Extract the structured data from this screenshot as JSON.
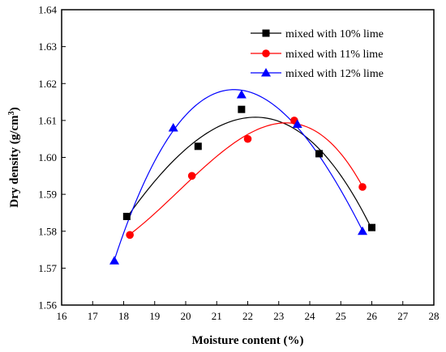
{
  "chart_data": {
    "type": "line",
    "xlabel": "Moisture content (%)",
    "ylabel_main": "Dry density (g/cm",
    "ylabel_sup": "3",
    "ylabel_close": ")",
    "xlim": [
      16,
      28
    ],
    "ylim": [
      1.56,
      1.64
    ],
    "xticks": [
      "16",
      "17",
      "18",
      "19",
      "20",
      "21",
      "22",
      "23",
      "24",
      "25",
      "26",
      "27",
      "28"
    ],
    "yticks": [
      "1.56",
      "1.57",
      "1.58",
      "1.59",
      "1.60",
      "1.61",
      "1.62",
      "1.63",
      "1.64"
    ],
    "grid": false,
    "legend_position": "top-right",
    "series": [
      {
        "name": "mixed with 10% lime",
        "color": "#000000",
        "marker": "square",
        "x": [
          18.1,
          20.4,
          21.8,
          24.3,
          26.0
        ],
        "y": [
          1.584,
          1.603,
          1.613,
          1.601,
          1.581
        ]
      },
      {
        "name": "mixed with 11% lime",
        "color": "#ff0000",
        "marker": "circle",
        "x": [
          18.2,
          20.2,
          22.0,
          23.5,
          25.7
        ],
        "y": [
          1.579,
          1.595,
          1.605,
          1.61,
          1.592
        ]
      },
      {
        "name": "mixed with 12% lime",
        "color": "#0000ff",
        "marker": "triangle",
        "x": [
          17.7,
          19.6,
          21.8,
          23.6,
          25.7
        ],
        "y": [
          1.572,
          1.608,
          1.617,
          1.609,
          1.58
        ]
      }
    ]
  }
}
